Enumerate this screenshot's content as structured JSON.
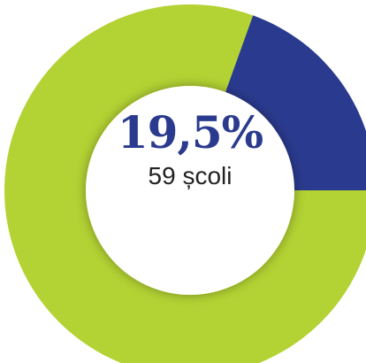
{
  "chart_data": {
    "type": "pie",
    "variant": "donut",
    "slices": [
      {
        "label": "",
        "value": 19.5,
        "color": "#2a3a8e"
      },
      {
        "label": "",
        "value": 80.5,
        "color": "#b3d233"
      }
    ],
    "center_value": "19,5%",
    "center_label": "59 școli",
    "title": "",
    "legend": "none"
  }
}
